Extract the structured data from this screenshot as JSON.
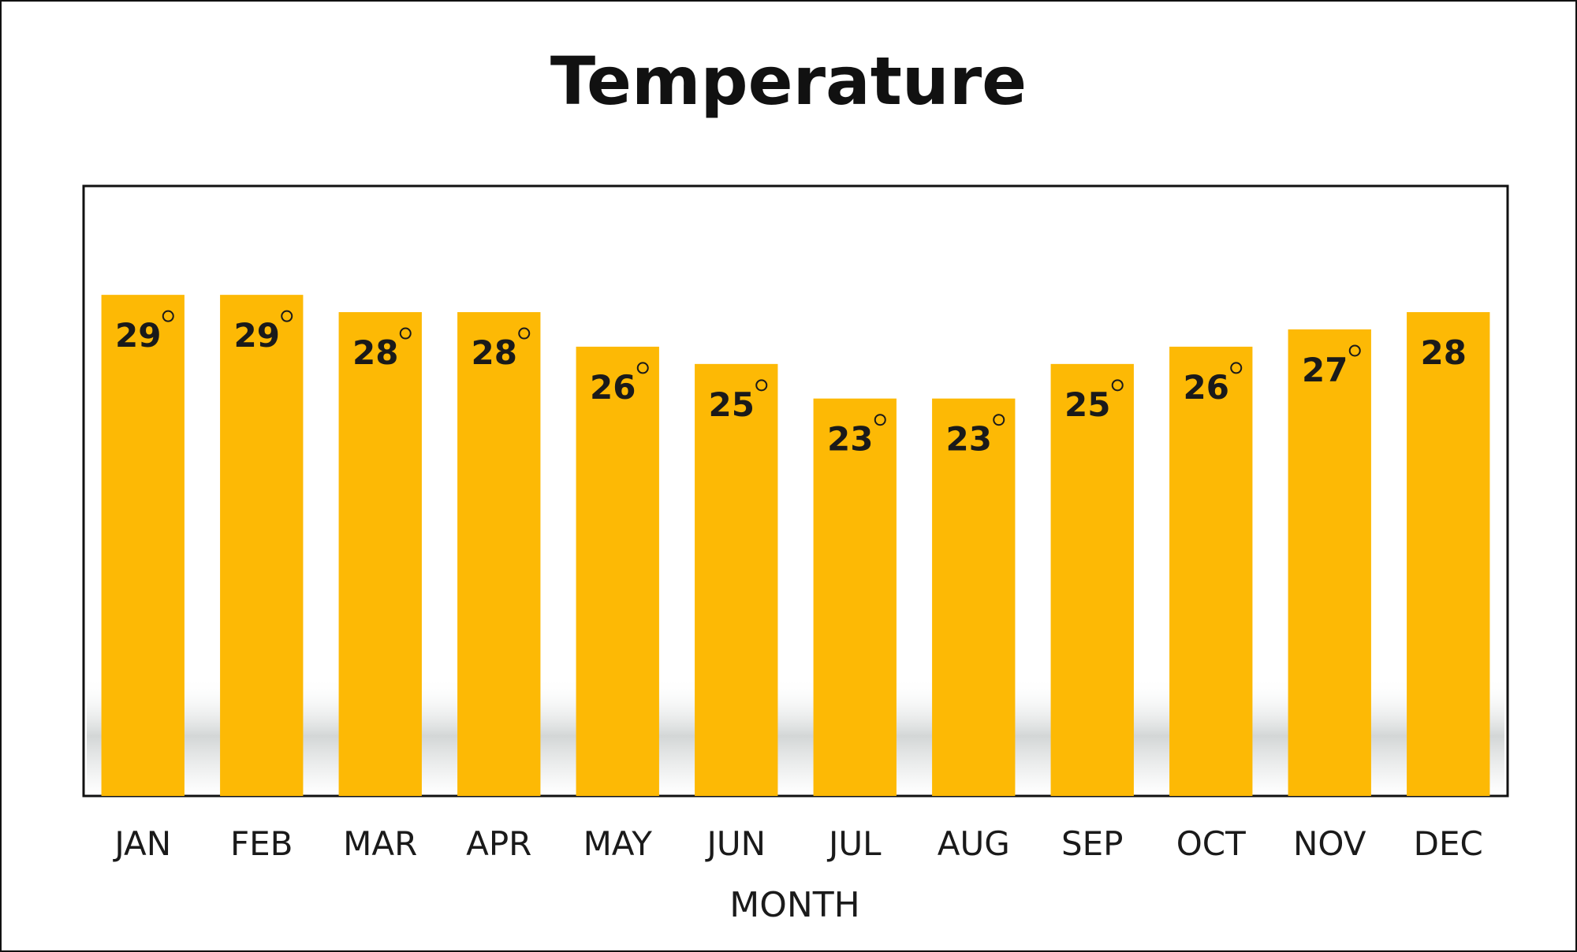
{
  "chart_data": {
    "type": "bar",
    "title": "Temperature",
    "xlabel": "MONTH",
    "ylabel": "",
    "categories": [
      "JAN",
      "FEB",
      "MAR",
      "APR",
      "MAY",
      "JUN",
      "JUL",
      "AUG",
      "SEP",
      "OCT",
      "NOV",
      "DEC"
    ],
    "values": [
      29,
      29,
      28,
      28,
      26,
      25,
      23,
      23,
      25,
      26,
      27,
      28
    ],
    "value_labels": [
      "29",
      "29",
      "28",
      "28",
      "26",
      "25",
      "23",
      "23",
      "25",
      "26",
      "27",
      "28"
    ],
    "degree_symbol_shown": [
      true,
      true,
      true,
      true,
      true,
      true,
      true,
      true,
      true,
      true,
      true,
      false
    ],
    "ylim": [
      0,
      35.3
    ],
    "grid": false,
    "legend": "none",
    "colors": {
      "bar": "#FDB905",
      "label": "#1a1a1a",
      "frame": "#111111",
      "shadow": "#c8cccc"
    }
  }
}
